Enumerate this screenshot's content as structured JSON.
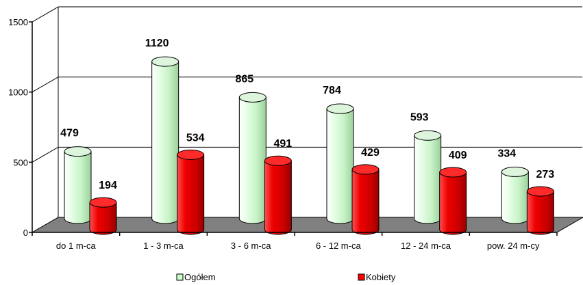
{
  "chart_data": {
    "type": "bar",
    "categories": [
      "do 1 m-ca",
      "1 - 3 m-ca",
      "3 - 6 m-ca",
      "6 - 12 m-ca",
      "12 - 24 m-ca",
      "pow. 24 m-cy"
    ],
    "series": [
      {
        "name": "Ogółem",
        "values": [
          479,
          1120,
          865,
          784,
          593,
          334
        ],
        "color": "#ccffcc"
      },
      {
        "name": "Kobiety",
        "values": [
          194,
          534,
          491,
          429,
          409,
          273
        ],
        "color": "#ff0000"
      }
    ],
    "y_ticks": [
      0,
      500,
      1000,
      1500
    ],
    "ylim": [
      0,
      1500
    ],
    "title": "",
    "xlabel": "",
    "ylabel": "",
    "grid": true,
    "legend_position": "bottom",
    "floor_color": "#808080",
    "style": "3d-cylinder"
  }
}
